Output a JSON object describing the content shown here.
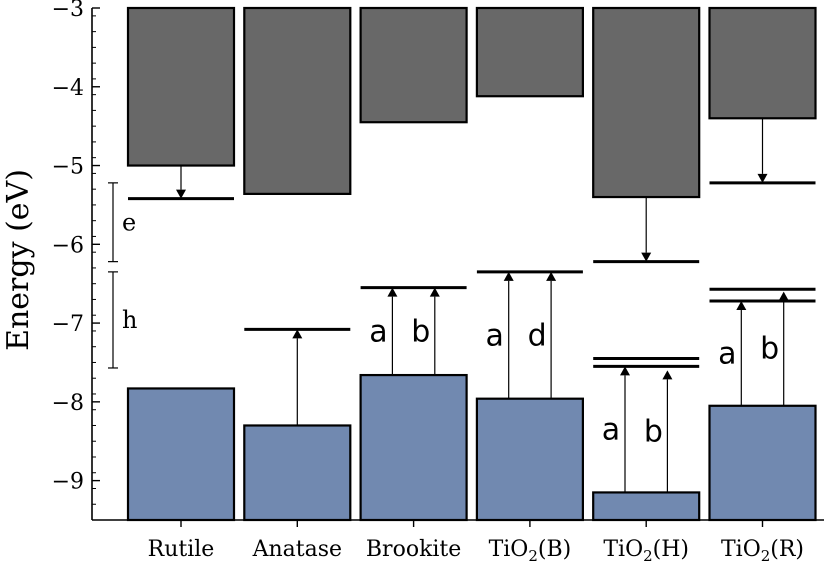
{
  "chart_data": {
    "type": "bar",
    "title": "",
    "ylabel": "Energy (eV)",
    "xlabel": "",
    "ylim": [
      -9.5,
      -3
    ],
    "yticks": [
      -3,
      -4,
      -5,
      -6,
      -7,
      -8,
      -9
    ],
    "ytick_labels": [
      "−3",
      "−4",
      "−5",
      "−6",
      "−7",
      "−8",
      "−9"
    ],
    "categories": [
      {
        "main": "Rutile",
        "sub": "",
        "suffix": ""
      },
      {
        "main": "Anatase",
        "sub": "",
        "suffix": ""
      },
      {
        "main": "Brookite",
        "sub": "",
        "suffix": ""
      },
      {
        "main": "TiO",
        "sub": "2",
        "suffix": "(B)"
      },
      {
        "main": "TiO",
        "sub": "2",
        "suffix": "(H)"
      },
      {
        "main": "TiO",
        "sub": "2",
        "suffix": "(R)"
      }
    ],
    "conduction_band_minimum": [
      -5.0,
      -5.36,
      -4.45,
      -4.12,
      -5.4,
      -4.4
    ],
    "valence_band_maximum": [
      -7.83,
      -8.3,
      -7.66,
      -7.96,
      -9.15,
      -8.05
    ],
    "levels": [
      [
        -5.42
      ],
      [
        -7.08
      ],
      [
        -6.55
      ],
      [
        -6.35
      ],
      [
        -6.22,
        -7.45,
        -7.55
      ],
      [
        -5.22,
        -6.57,
        -6.72
      ]
    ],
    "arrows": [
      {
        "bar": 0,
        "from": -5.0,
        "to": -5.42,
        "offset": 0,
        "label": ""
      },
      {
        "bar": 1,
        "from": -8.3,
        "to": -7.08,
        "offset": 0,
        "label": ""
      },
      {
        "bar": 2,
        "from": -7.66,
        "to": -6.55,
        "offset": -0.2,
        "label": "a"
      },
      {
        "bar": 2,
        "from": -7.66,
        "to": -6.55,
        "offset": 0.2,
        "label": "b"
      },
      {
        "bar": 3,
        "from": -7.96,
        "to": -6.35,
        "offset": -0.2,
        "label": "a"
      },
      {
        "bar": 3,
        "from": -7.96,
        "to": -6.35,
        "offset": 0.2,
        "label": "d"
      },
      {
        "bar": 4,
        "from": -5.4,
        "to": -6.22,
        "offset": 0,
        "label": ""
      },
      {
        "bar": 4,
        "from": -9.15,
        "to": -7.55,
        "offset": -0.2,
        "label": "a"
      },
      {
        "bar": 4,
        "from": -9.15,
        "to": -7.6,
        "offset": 0.2,
        "label": "b"
      },
      {
        "bar": 5,
        "from": -4.4,
        "to": -5.22,
        "offset": 0,
        "label": ""
      },
      {
        "bar": 5,
        "from": -8.05,
        "to": -6.72,
        "offset": -0.2,
        "label": "a"
      },
      {
        "bar": 5,
        "from": -8.05,
        "to": -6.6,
        "offset": 0.2,
        "label": "b"
      }
    ],
    "brackets": [
      {
        "label": "e",
        "from": -5.22,
        "to": -6.22
      },
      {
        "label": "h",
        "from": -6.35,
        "to": -7.57
      }
    ],
    "colors": {
      "conduction": "#686868",
      "valence": "#7189b0",
      "edge": "#000000"
    },
    "grid": false,
    "legend": "none"
  }
}
